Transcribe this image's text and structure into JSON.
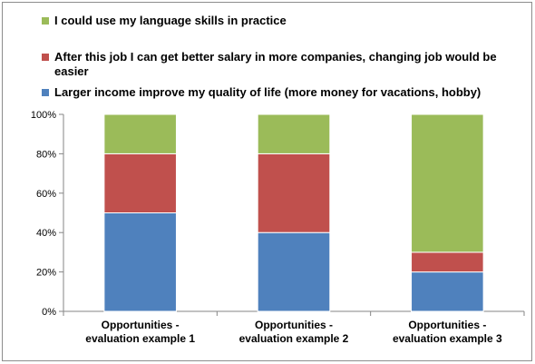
{
  "colors": {
    "series_green": "#9bbb59",
    "series_red": "#c0504d",
    "series_blue": "#4f81bd",
    "axis": "#868686",
    "grid": "none"
  },
  "legend": {
    "items": [
      {
        "label": "I could use my language skills in practice",
        "color": "#9bbb59"
      },
      {
        "label": "After this job I can get better salary in more companies, changing job would be easier",
        "color": "#c0504d"
      },
      {
        "label": "Larger income improve my quality of life (more money for vacations, hobby)",
        "color": "#4f81bd"
      }
    ]
  },
  "chart_data": {
    "type": "bar",
    "stacked": true,
    "percent": true,
    "categories": [
      [
        "Opportunities  -",
        "evaluation example 1"
      ],
      [
        "Opportunities  -",
        "evaluation example 2"
      ],
      [
        "Opportunities  -",
        "evaluation example 3"
      ]
    ],
    "series": [
      {
        "name": "Larger income improve my quality of life (more money for vacations, hobby)",
        "values": [
          50,
          40,
          20
        ],
        "color": "#4f81bd"
      },
      {
        "name": "After this job I can get better salary in more companies, changing job would be easier",
        "values": [
          30,
          40,
          10
        ],
        "color": "#c0504d"
      },
      {
        "name": "I could use my language skills in practice",
        "values": [
          20,
          20,
          70
        ],
        "color": "#9bbb59"
      }
    ],
    "ylim": [
      0,
      100
    ],
    "yticks": [
      "0%",
      "20%",
      "40%",
      "60%",
      "80%",
      "100%"
    ],
    "grid": false,
    "legend_position": "top"
  }
}
